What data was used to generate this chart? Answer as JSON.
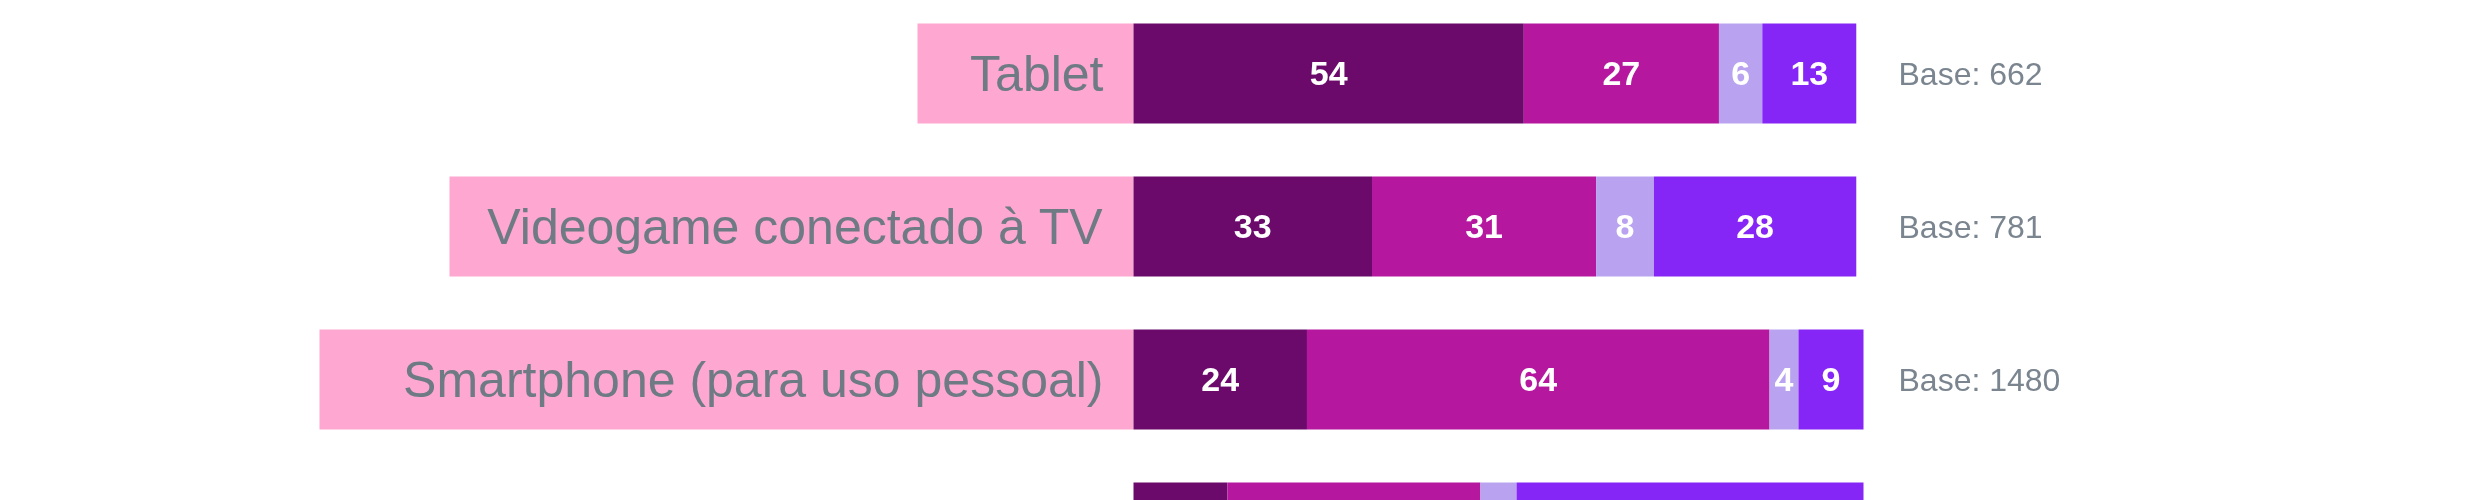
{
  "chart_data": {
    "type": "bar",
    "orientation": "horizontal",
    "stacked": true,
    "categories": [
      "Tablet",
      "Videogame conectado à TV",
      "Smartphone (para uso pessoal)",
      null
    ],
    "series": [
      {
        "color": "#6b0a6b",
        "values": [
          54,
          33,
          24,
          13
        ],
        "value_labels": [
          "54",
          "33",
          "24",
          null
        ]
      },
      {
        "color": "#b5179e",
        "values": [
          27,
          31,
          64,
          35
        ],
        "value_labels": [
          "27",
          "31",
          "64",
          null
        ]
      },
      {
        "color": "#b9a3f0",
        "values": [
          6,
          8,
          4,
          5
        ],
        "value_labels": [
          "6",
          "8",
          "4",
          null
        ]
      },
      {
        "color": "#8526f6",
        "values": [
          13,
          28,
          9,
          48
        ],
        "value_labels": [
          "13",
          "28",
          "9",
          null
        ]
      }
    ],
    "annotations": [
      "Base: 662",
      "Base: 781",
      "Base: 1480"
    ],
    "grid": false
  }
}
